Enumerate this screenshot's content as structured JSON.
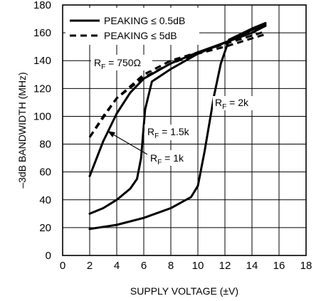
{
  "chart_data": {
    "type": "line",
    "xlabel": "SUPPLY VOLTAGE (±V)",
    "ylabel": "–3dB BANDWIDTH (MHz)",
    "xlim": [
      0,
      18
    ],
    "ylim": [
      0,
      180
    ],
    "x_ticks": [
      "0",
      "2",
      "4",
      "6",
      "8",
      "10",
      "12",
      "14",
      "16",
      "18"
    ],
    "y_ticks": [
      "0",
      "20",
      "40",
      "60",
      "80",
      "100",
      "120",
      "140",
      "160",
      "180"
    ],
    "grid": true,
    "legend": {
      "placement": "top-left",
      "entries": [
        {
          "label": "PEAKING ≤ 0.5dB",
          "style": "solid"
        },
        {
          "label": "PEAKING ≤ 5dB",
          "style": "dashed"
        }
      ]
    },
    "annotations": [
      {
        "text": "RF = 750Ω",
        "main": "R",
        "sub": "F",
        "rest": " = 750Ω"
      },
      {
        "text": "RF = 2k",
        "main": "R",
        "sub": "F",
        "rest": " = 2k"
      },
      {
        "text": "RF = 1.5k",
        "main": "R",
        "sub": "F",
        "rest": " = 1.5k"
      },
      {
        "text": "RF = 1k",
        "main": "R",
        "sub": "F",
        "rest": " = 1k"
      }
    ],
    "series": [
      {
        "style": "dashed",
        "x": [
          2,
          3,
          4,
          6,
          8,
          10,
          12,
          14,
          15
        ],
        "y": [
          85,
          100,
          113,
          128,
          138,
          145,
          150,
          156,
          159
        ]
      },
      {
        "style": "dashed",
        "x": [
          2,
          4,
          6,
          8,
          10,
          12,
          14,
          15
        ],
        "y": [
          85,
          113,
          130,
          140,
          146,
          152,
          158,
          161
        ]
      },
      {
        "style": "solid",
        "x": [
          2,
          3,
          4,
          5,
          6,
          8,
          10,
          12,
          14,
          15
        ],
        "y": [
          57,
          82,
          102,
          117,
          127,
          138,
          146,
          153,
          160,
          165
        ]
      },
      {
        "style": "solid",
        "x": [
          2,
          3,
          4,
          5,
          5.5,
          5.8,
          6.1,
          6.6,
          8,
          10,
          12,
          14,
          15
        ],
        "y": [
          30,
          34,
          40,
          48,
          55,
          70,
          105,
          125,
          134,
          145,
          153,
          162,
          166
        ]
      },
      {
        "style": "solid",
        "x": [
          2,
          4,
          6,
          8,
          9.5,
          10,
          10.5,
          11.2,
          11.7,
          12.3,
          14,
          15
        ],
        "y": [
          19,
          22,
          27,
          34,
          42,
          50,
          75,
          115,
          138,
          155,
          163,
          167
        ]
      }
    ]
  }
}
